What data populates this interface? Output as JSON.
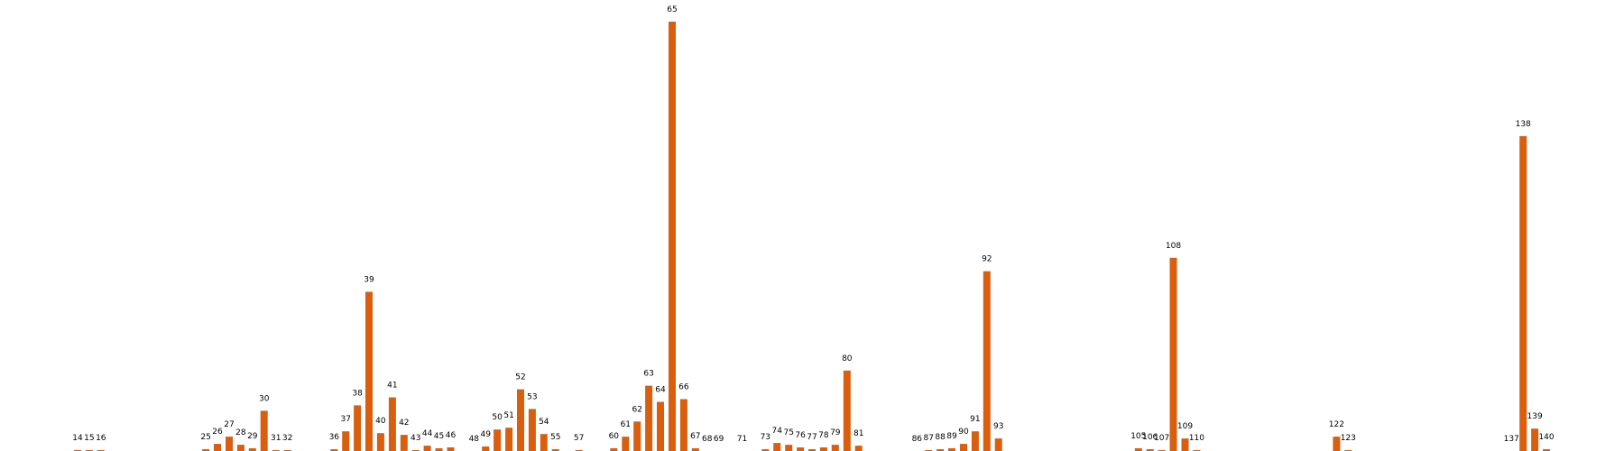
{
  "chart_data": {
    "type": "bar",
    "title": "",
    "xlabel": "",
    "ylabel": "",
    "grid": false,
    "legend": "none",
    "bar_color": "#d95f0e",
    "x": [
      14,
      15,
      16,
      25,
      26,
      27,
      28,
      29,
      30,
      31,
      32,
      36,
      37,
      38,
      39,
      40,
      41,
      42,
      43,
      44,
      45,
      46,
      48,
      49,
      50,
      51,
      52,
      53,
      54,
      55,
      57,
      60,
      61,
      62,
      63,
      64,
      65,
      66,
      67,
      68,
      69,
      71,
      73,
      74,
      75,
      76,
      77,
      78,
      79,
      80,
      81,
      86,
      87,
      88,
      89,
      90,
      91,
      92,
      93,
      105,
      106,
      107,
      108,
      109,
      110,
      122,
      123,
      137,
      138,
      139,
      140
    ],
    "labels": [
      "14",
      "15",
      "16",
      "25",
      "26",
      "27",
      "28",
      "29",
      "30",
      "31",
      "32",
      "36",
      "37",
      "38",
      "39",
      "40",
      "41",
      "42",
      "43",
      "44",
      "45",
      "46",
      "48",
      "49",
      "50",
      "51",
      "52",
      "53",
      "54",
      "55",
      "57",
      "60",
      "61",
      "62",
      "63",
      "64",
      "65",
      "66",
      "67",
      "68",
      "69",
      "71",
      "73",
      "74",
      "75",
      "76",
      "77",
      "78",
      "79",
      "80",
      "81",
      "86",
      "87",
      "88",
      "89",
      "90",
      "91",
      "92",
      "93",
      "105",
      "106",
      "107",
      "108",
      "109",
      "110",
      "122",
      "123",
      "137",
      "138",
      "139",
      "140"
    ],
    "values": [
      1,
      1,
      1,
      2,
      8,
      16,
      7,
      3,
      45,
      1,
      1,
      2,
      22,
      51,
      178,
      20,
      60,
      18,
      1,
      6,
      3,
      4,
      0,
      5,
      24,
      26,
      69,
      47,
      19,
      2,
      1,
      3,
      16,
      33,
      73,
      55,
      480,
      58,
      3,
      0,
      0,
      0,
      2,
      9,
      7,
      4,
      2,
      4,
      7,
      90,
      6,
      0,
      1,
      2,
      3,
      8,
      22,
      201,
      14,
      3,
      2,
      1,
      216,
      14,
      1,
      16,
      1,
      0,
      352,
      25,
      2
    ],
    "ylim": [
      0,
      480
    ]
  }
}
